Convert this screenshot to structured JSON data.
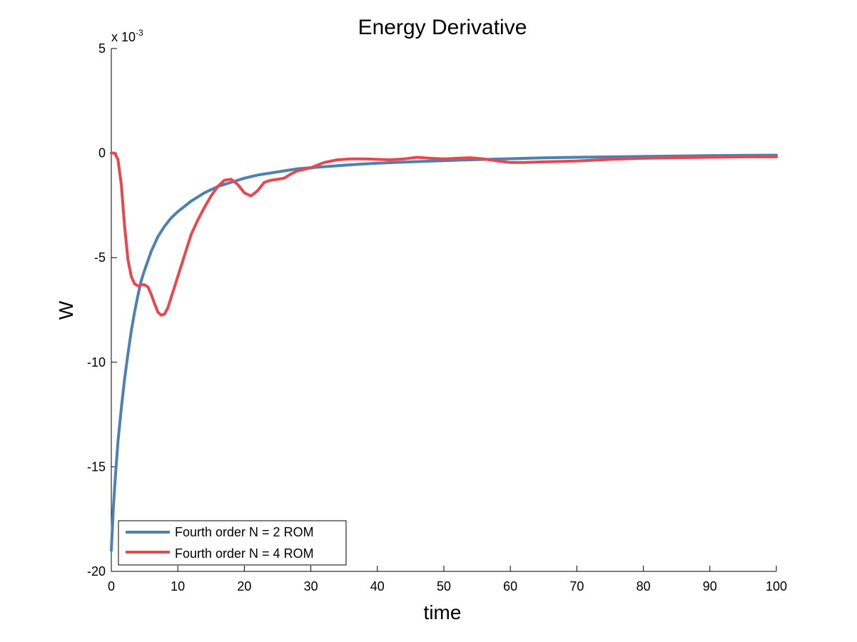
{
  "chart_data": {
    "type": "line",
    "title": "Energy Derivative",
    "xlabel": "time",
    "ylabel": "W",
    "y_scale_note": {
      "base": "x 10",
      "exponent": "-3"
    },
    "xlim": [
      0,
      100
    ],
    "ylim": [
      -20,
      5
    ],
    "xticks": [
      0,
      10,
      20,
      30,
      40,
      50,
      60,
      70,
      80,
      90,
      100
    ],
    "yticks": [
      -20,
      -15,
      -10,
      -5,
      0,
      5
    ],
    "xtick_labels": [
      "0",
      "10",
      "20",
      "30",
      "40",
      "50",
      "60",
      "70",
      "80",
      "90",
      "100"
    ],
    "ytick_labels": [
      "-20",
      "-15",
      "-10",
      "-5",
      "0",
      "5"
    ],
    "grid": false,
    "legend_position": "bottom-left",
    "series": [
      {
        "name": "Fourth order N = 2 ROM",
        "color": "#4f81b0",
        "x": [
          0,
          0.3,
          0.6,
          1,
          1.5,
          2,
          2.5,
          3,
          3.5,
          4,
          4.5,
          5,
          6,
          7,
          8,
          9,
          10,
          12,
          14,
          16,
          18,
          20,
          22,
          25,
          28,
          30,
          35,
          40,
          45,
          50,
          55,
          60,
          65,
          70,
          75,
          80,
          85,
          90,
          95,
          100
        ],
        "y": [
          -19.0,
          -17.0,
          -15.5,
          -13.8,
          -12.2,
          -10.8,
          -9.6,
          -8.5,
          -7.6,
          -6.8,
          -6.1,
          -5.6,
          -4.7,
          -4.0,
          -3.5,
          -3.1,
          -2.8,
          -2.3,
          -1.9,
          -1.6,
          -1.4,
          -1.2,
          -1.05,
          -0.9,
          -0.75,
          -0.7,
          -0.58,
          -0.48,
          -0.42,
          -0.36,
          -0.31,
          -0.27,
          -0.23,
          -0.2,
          -0.18,
          -0.16,
          -0.14,
          -0.12,
          -0.11,
          -0.1
        ]
      },
      {
        "name": "Fourth order N = 4 ROM",
        "color": "#e8474d",
        "x": [
          0,
          0.5,
          1,
          1.5,
          2,
          2.5,
          3,
          3.5,
          4,
          4.5,
          5,
          5.5,
          6,
          6.5,
          7,
          7.5,
          8,
          8.5,
          9,
          10,
          11,
          12,
          13,
          14,
          15,
          16,
          17,
          18,
          19,
          20,
          21,
          22,
          23,
          24,
          25,
          26,
          27,
          28,
          30,
          32,
          34,
          36,
          38,
          40,
          42,
          44,
          46,
          48,
          50,
          52,
          54,
          56,
          58,
          60,
          62,
          65,
          70,
          75,
          80,
          85,
          90,
          95,
          100
        ],
        "y": [
          0,
          0,
          -0.3,
          -1.5,
          -3.5,
          -5.1,
          -5.9,
          -6.25,
          -6.35,
          -6.3,
          -6.3,
          -6.4,
          -6.75,
          -7.2,
          -7.6,
          -7.75,
          -7.7,
          -7.4,
          -6.9,
          -5.9,
          -4.9,
          -3.9,
          -3.2,
          -2.6,
          -2.05,
          -1.6,
          -1.3,
          -1.25,
          -1.5,
          -1.9,
          -2.05,
          -1.8,
          -1.4,
          -1.3,
          -1.25,
          -1.2,
          -1.0,
          -0.85,
          -0.7,
          -0.45,
          -0.32,
          -0.28,
          -0.28,
          -0.3,
          -0.32,
          -0.28,
          -0.2,
          -0.25,
          -0.28,
          -0.25,
          -0.22,
          -0.28,
          -0.38,
          -0.45,
          -0.45,
          -0.42,
          -0.38,
          -0.3,
          -0.25,
          -0.22,
          -0.2,
          -0.18,
          -0.18
        ]
      }
    ]
  }
}
